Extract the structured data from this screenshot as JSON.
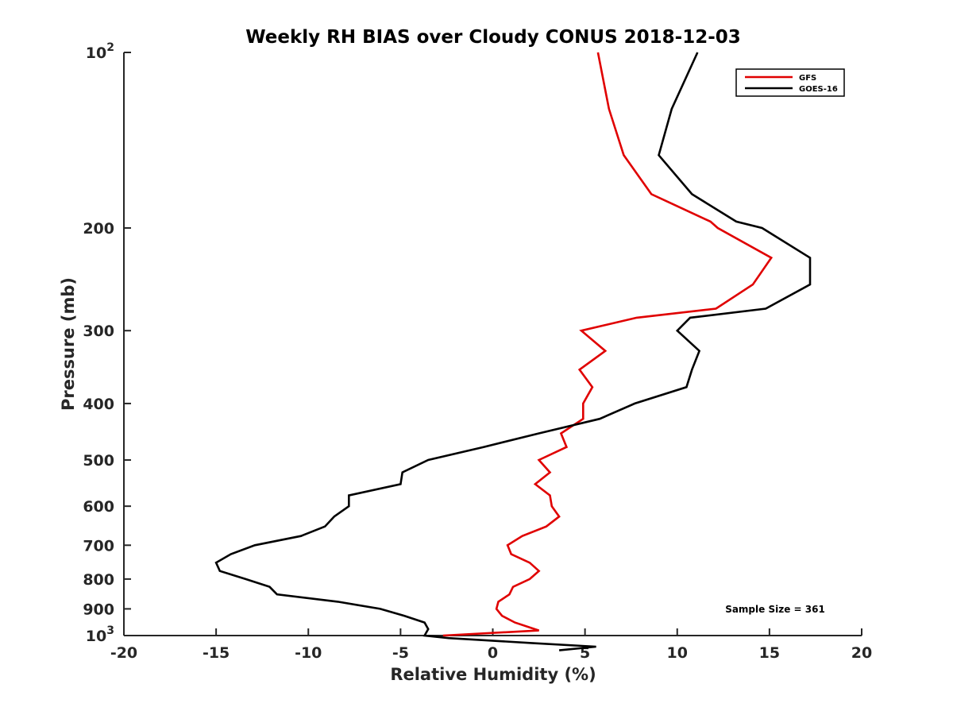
{
  "chart_data": {
    "type": "line",
    "title": "Weekly RH BIAS over Cloudy CONUS 2018-12-03",
    "xlabel": "Relative Humidity (%)",
    "ylabel": "Pressure (mb)",
    "xlim": [
      -20,
      20
    ],
    "ylim": [
      100,
      1000
    ],
    "y_scale": "log",
    "y_reversed": true,
    "grid": false,
    "legend_position": "top-right",
    "x_ticks": [
      {
        "value": -20,
        "label": "-20"
      },
      {
        "value": -15,
        "label": "-15"
      },
      {
        "value": -10,
        "label": "-10"
      },
      {
        "value": -5,
        "label": "-5"
      },
      {
        "value": 0,
        "label": "0"
      },
      {
        "value": 5,
        "label": "5"
      },
      {
        "value": 10,
        "label": "10"
      },
      {
        "value": 15,
        "label": "15"
      },
      {
        "value": 20,
        "label": "20"
      }
    ],
    "y_ticks": [
      {
        "value": 100,
        "base": "10",
        "exp": "2"
      },
      {
        "value": 200,
        "label": "200"
      },
      {
        "value": 300,
        "label": "300"
      },
      {
        "value": 400,
        "label": "400"
      },
      {
        "value": 500,
        "label": "500"
      },
      {
        "value": 600,
        "label": "600"
      },
      {
        "value": 700,
        "label": "700"
      },
      {
        "value": 800,
        "label": "800"
      },
      {
        "value": 900,
        "label": "900"
      },
      {
        "value": 1000,
        "base": "10",
        "exp": "3"
      }
    ],
    "series": [
      {
        "name": "GFS",
        "color": "#e00000",
        "points": [
          [
            5.7,
            100
          ],
          [
            6.3,
            125
          ],
          [
            7.1,
            150
          ],
          [
            8.6,
            175
          ],
          [
            11.8,
            195
          ],
          [
            12.2,
            200
          ],
          [
            15.1,
            225
          ],
          [
            14.1,
            250
          ],
          [
            12.1,
            275
          ],
          [
            7.8,
            285
          ],
          [
            4.8,
            300
          ],
          [
            6.1,
            325
          ],
          [
            4.7,
            350
          ],
          [
            5.4,
            375
          ],
          [
            4.9,
            400
          ],
          [
            4.9,
            425
          ],
          [
            3.7,
            450
          ],
          [
            4.0,
            475
          ],
          [
            2.5,
            500
          ],
          [
            3.1,
            525
          ],
          [
            2.3,
            550
          ],
          [
            3.1,
            575
          ],
          [
            3.2,
            600
          ],
          [
            3.6,
            625
          ],
          [
            2.9,
            650
          ],
          [
            1.6,
            675
          ],
          [
            0.8,
            700
          ],
          [
            1.0,
            725
          ],
          [
            2.0,
            750
          ],
          [
            2.5,
            775
          ],
          [
            2.0,
            800
          ],
          [
            1.1,
            825
          ],
          [
            0.9,
            850
          ],
          [
            0.3,
            875
          ],
          [
            0.2,
            900
          ],
          [
            0.5,
            925
          ],
          [
            1.2,
            950
          ],
          [
            2.5,
            980
          ],
          [
            -2.7,
            1000
          ]
        ]
      },
      {
        "name": "GOES-16",
        "color": "#000000",
        "points": [
          [
            11.1,
            100
          ],
          [
            9.7,
            125
          ],
          [
            9.0,
            150
          ],
          [
            10.8,
            175
          ],
          [
            13.2,
            195
          ],
          [
            14.6,
            200
          ],
          [
            17.2,
            225
          ],
          [
            17.2,
            250
          ],
          [
            14.8,
            275
          ],
          [
            10.7,
            285
          ],
          [
            10.0,
            300
          ],
          [
            11.2,
            325
          ],
          [
            10.8,
            350
          ],
          [
            10.5,
            375
          ],
          [
            7.7,
            400
          ],
          [
            5.8,
            425
          ],
          [
            2.5,
            450
          ],
          [
            -0.5,
            475
          ],
          [
            -3.5,
            500
          ],
          [
            -4.9,
            525
          ],
          [
            -5.0,
            550
          ],
          [
            -7.8,
            575
          ],
          [
            -7.8,
            600
          ],
          [
            -8.6,
            625
          ],
          [
            -9.1,
            650
          ],
          [
            -10.4,
            675
          ],
          [
            -12.9,
            700
          ],
          [
            -14.2,
            725
          ],
          [
            -15.0,
            750
          ],
          [
            -14.8,
            775
          ],
          [
            -13.4,
            800
          ],
          [
            -12.1,
            825
          ],
          [
            -11.7,
            850
          ],
          [
            -8.4,
            875
          ],
          [
            -6.1,
            900
          ],
          [
            -4.8,
            925
          ],
          [
            -3.7,
            950
          ],
          [
            -3.5,
            975
          ],
          [
            -3.7,
            1000
          ],
          [
            -2.4,
            1010
          ],
          [
            2.1,
            1030
          ],
          [
            5.6,
            1045
          ],
          [
            3.6,
            1060
          ]
        ]
      }
    ],
    "annotation": "Sample Size = 361"
  }
}
